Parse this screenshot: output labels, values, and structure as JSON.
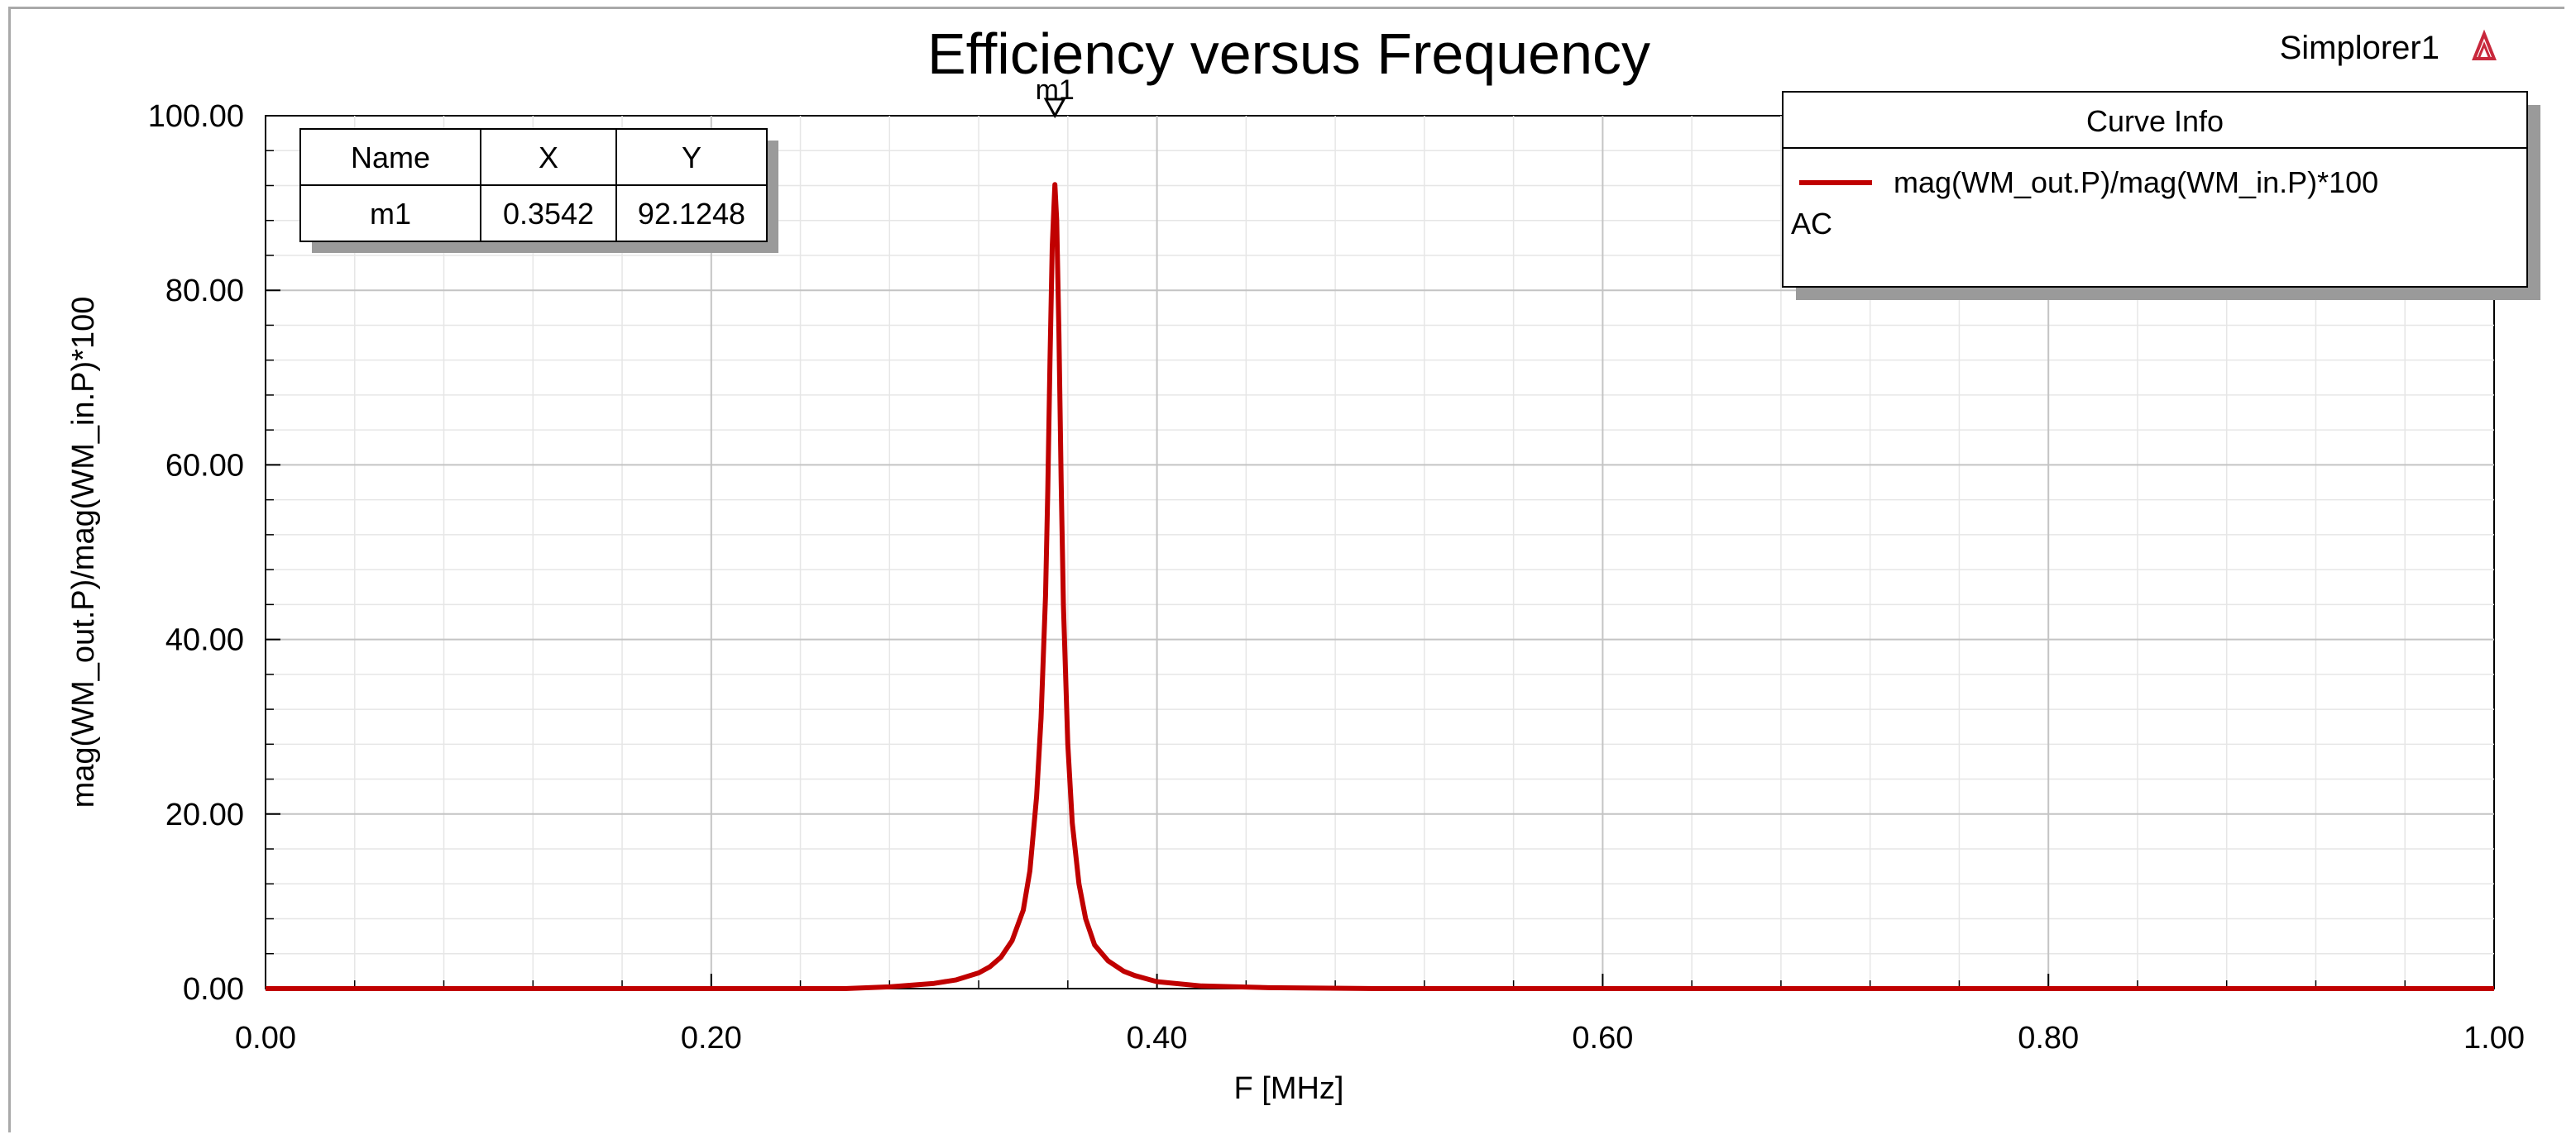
{
  "app": {
    "name": "Simplorer1",
    "logo_icon": "ansys-logo-icon"
  },
  "chart_data": {
    "type": "line",
    "title": "Efficiency versus Frequency",
    "xlabel": "F [MHz]",
    "ylabel": "mag(WM_out.P)/mag(WM_in.P)*100",
    "xlim": [
      0.0,
      1.0
    ],
    "ylim": [
      0.0,
      100.0
    ],
    "x_ticks": [
      "0.00",
      "0.20",
      "0.40",
      "0.60",
      "0.80",
      "1.00"
    ],
    "y_ticks": [
      "0.00",
      "20.00",
      "40.00",
      "60.00",
      "80.00",
      "100.00"
    ],
    "grid": true,
    "series": [
      {
        "name": "mag(WM_out.P)/mag(WM_in.P)*100",
        "color": "#c00000",
        "x": [
          0.0,
          0.1,
          0.2,
          0.26,
          0.28,
          0.3,
          0.31,
          0.32,
          0.325,
          0.33,
          0.335,
          0.34,
          0.343,
          0.346,
          0.348,
          0.35,
          0.351,
          0.352,
          0.353,
          0.3542,
          0.355,
          0.356,
          0.357,
          0.358,
          0.36,
          0.362,
          0.365,
          0.368,
          0.372,
          0.378,
          0.385,
          0.39,
          0.4,
          0.42,
          0.45,
          0.5,
          0.6,
          0.8,
          1.0
        ],
        "y": [
          0.0,
          0.0,
          0.0,
          0.0,
          0.2,
          0.6,
          1.0,
          1.8,
          2.5,
          3.6,
          5.5,
          9.0,
          13.5,
          22.0,
          31.0,
          45.0,
          57.0,
          72.0,
          85.0,
          92.1248,
          88.0,
          75.0,
          58.0,
          44.0,
          28.0,
          19.0,
          12.0,
          8.0,
          5.0,
          3.2,
          2.0,
          1.5,
          0.8,
          0.3,
          0.1,
          0.0,
          0.0,
          0.0,
          0.0
        ]
      }
    ],
    "legend": {
      "title": "Curve Info",
      "placement": "top-right",
      "entries": [
        "mag(WM_out.P)/mag(WM_in.P)*100"
      ],
      "sublabel": "AC"
    },
    "marker": {
      "name": "m1",
      "x": 0.3542,
      "y": 92.1248,
      "table": {
        "headers": [
          "Name",
          "X",
          "Y"
        ],
        "row": [
          "m1",
          "0.3542",
          "92.1248"
        ]
      }
    }
  }
}
